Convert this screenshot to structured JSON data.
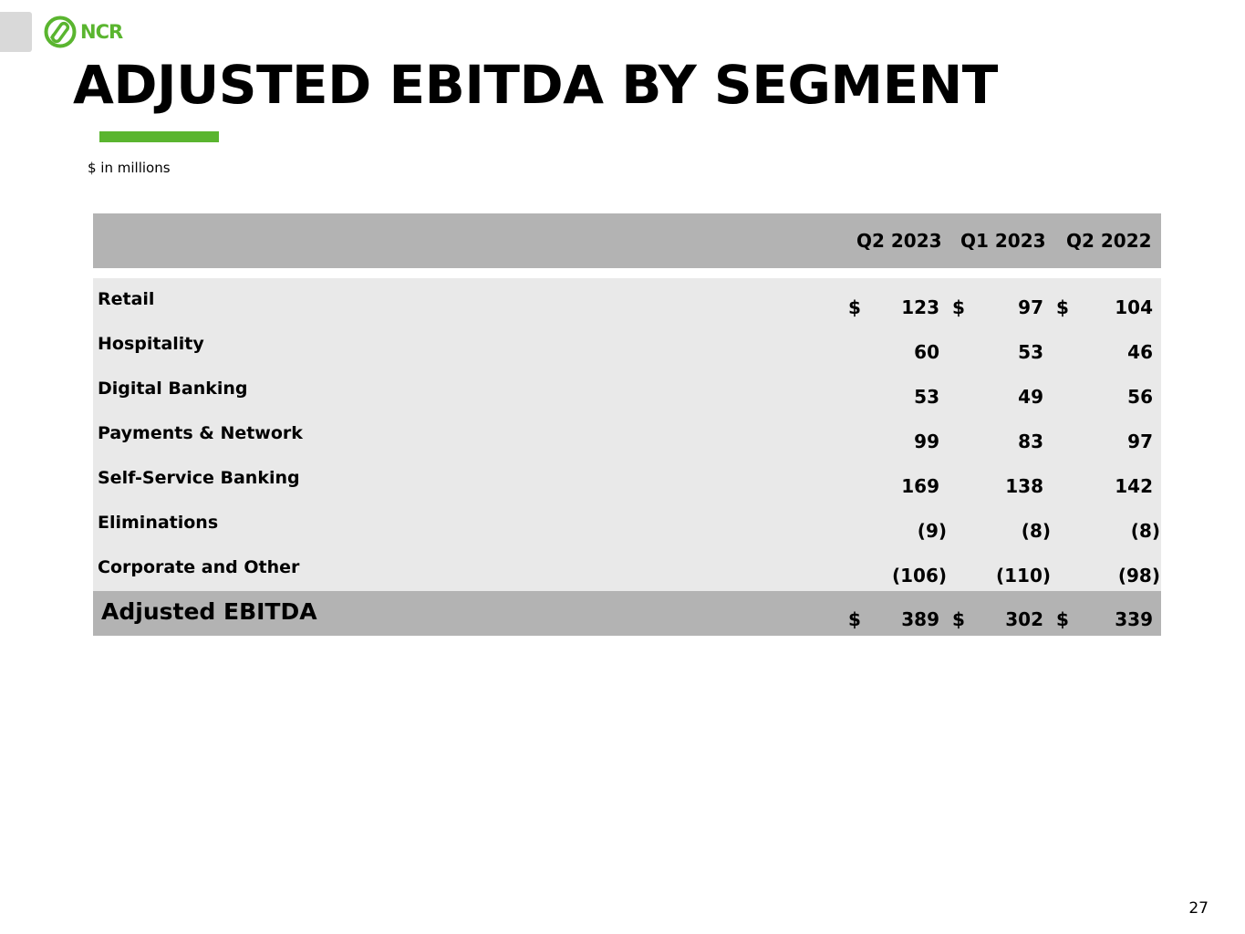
{
  "logo": {
    "text": "NCR",
    "accent_color": "#5ab52f"
  },
  "title": "ADJUSTED EBITDA BY SEGMENT",
  "units_note": "$ in millions",
  "table": {
    "columns": [
      "Q2 2023",
      "Q1 2023",
      "Q2 2022"
    ],
    "currency_symbol": "$",
    "rows": [
      {
        "label": "Retail",
        "values": [
          "123",
          "97",
          "104"
        ],
        "show_currency": true
      },
      {
        "label": "Hospitality",
        "values": [
          "60",
          "53",
          "46"
        ],
        "show_currency": false
      },
      {
        "label": "Digital Banking",
        "values": [
          "53",
          "49",
          "56"
        ],
        "show_currency": false
      },
      {
        "label": "Payments & Network",
        "values": [
          "99",
          "83",
          "97"
        ],
        "show_currency": false
      },
      {
        "label": "Self-Service Banking",
        "values": [
          "169",
          "138",
          "142"
        ],
        "show_currency": false
      },
      {
        "label": "Eliminations",
        "values": [
          "(9)",
          "(8)",
          "(8)"
        ],
        "show_currency": false
      },
      {
        "label": "Corporate and Other",
        "values": [
          "(106)",
          "(110)",
          "(98)"
        ],
        "show_currency": false
      }
    ],
    "total": {
      "label": "Adjusted EBITDA",
      "values": [
        "389",
        "302",
        "339"
      ],
      "show_currency": true
    }
  },
  "page_number": "27"
}
